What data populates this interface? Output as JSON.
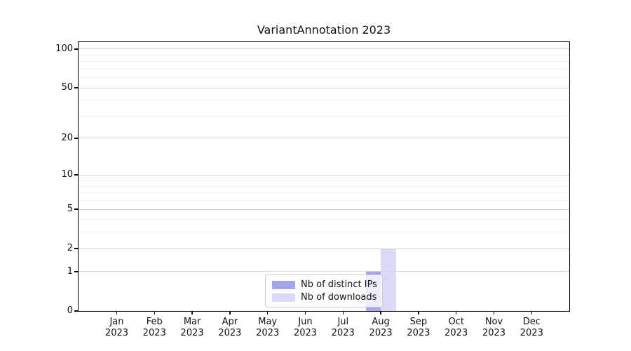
{
  "chart_data": {
    "type": "bar",
    "title": "VariantAnnotation 2023",
    "year_label": "2023",
    "categories": [
      "Jan",
      "Feb",
      "Mar",
      "Apr",
      "May",
      "Jun",
      "Jul",
      "Aug",
      "Sep",
      "Oct",
      "Nov",
      "Dec"
    ],
    "series": [
      {
        "name": "Nb of distinct IPs",
        "color": "#a6a6ee",
        "values": [
          0,
          0,
          0,
          0,
          0,
          0,
          0,
          1,
          0,
          0,
          0,
          0
        ]
      },
      {
        "name": "Nb of downloads",
        "color": "#d9d9f8",
        "values": [
          0,
          0,
          0,
          0,
          0,
          0,
          0,
          2,
          0,
          0,
          0,
          0
        ]
      }
    ],
    "y_axis": {
      "scale": "log1p",
      "ticks": [
        0,
        1,
        2,
        5,
        10,
        20,
        50,
        100
      ],
      "minor_ticks": [
        3,
        4,
        6,
        7,
        8,
        9,
        30,
        40,
        60,
        70,
        80,
        90
      ],
      "ylim": [
        0,
        100
      ]
    },
    "grid": true,
    "legend_position": "bottom-center"
  }
}
